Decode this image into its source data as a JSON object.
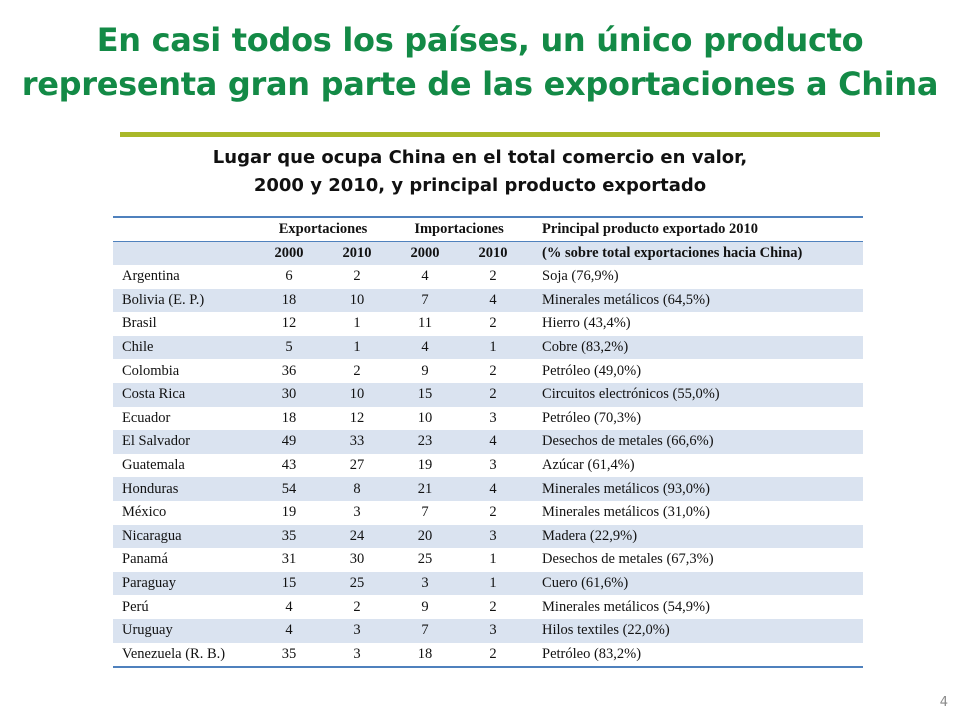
{
  "slide": {
    "title_line1": "En casi todos los países, un único producto",
    "title_line2": "representa gran parte de las exportaciones a China",
    "subtitle_line1": "Lugar que ocupa China en el total comercio en valor,",
    "subtitle_line2": "2000 y 2010, y principal producto exportado",
    "page_number": "4"
  },
  "table": {
    "group_headers": {
      "exports": "Exportaciones",
      "imports": "Importaciones",
      "product": "Principal producto exportado 2010"
    },
    "sub_headers": {
      "y1": "2000",
      "y2": "2010",
      "y3": "2000",
      "y4": "2010",
      "product": "(% sobre total exportaciones hacia China)"
    },
    "rows": [
      {
        "country": "Argentina",
        "exp2000": "6",
        "exp2010": "2",
        "imp2000": "4",
        "imp2010": "2",
        "product": "Soja (76,9%)"
      },
      {
        "country": "Bolivia (E. P.)",
        "exp2000": "18",
        "exp2010": "10",
        "imp2000": "7",
        "imp2010": "4",
        "product": "Minerales metálicos (64,5%)"
      },
      {
        "country": "Brasil",
        "exp2000": "12",
        "exp2010": "1",
        "imp2000": "11",
        "imp2010": "2",
        "product": "Hierro (43,4%)"
      },
      {
        "country": "Chile",
        "exp2000": "5",
        "exp2010": "1",
        "imp2000": "4",
        "imp2010": "1",
        "product": "Cobre (83,2%)"
      },
      {
        "country": "Colombia",
        "exp2000": "36",
        "exp2010": "2",
        "imp2000": "9",
        "imp2010": "2",
        "product": "Petróleo (49,0%)"
      },
      {
        "country": "Costa Rica",
        "exp2000": "30",
        "exp2010": "10",
        "imp2000": "15",
        "imp2010": "2",
        "product": "Circuitos electrónicos (55,0%)"
      },
      {
        "country": "Ecuador",
        "exp2000": "18",
        "exp2010": "12",
        "imp2000": "10",
        "imp2010": "3",
        "product": "Petróleo (70,3%)"
      },
      {
        "country": "El Salvador",
        "exp2000": "49",
        "exp2010": "33",
        "imp2000": "23",
        "imp2010": "4",
        "product": "Desechos de metales (66,6%)"
      },
      {
        "country": "Guatemala",
        "exp2000": "43",
        "exp2010": "27",
        "imp2000": "19",
        "imp2010": "3",
        "product": "Azúcar (61,4%)"
      },
      {
        "country": "Honduras",
        "exp2000": "54",
        "exp2010": "8",
        "imp2000": "21",
        "imp2010": "4",
        "product": "Minerales metálicos (93,0%)"
      },
      {
        "country": "México",
        "exp2000": "19",
        "exp2010": "3",
        "imp2000": "7",
        "imp2010": "2",
        "product": "Minerales metálicos (31,0%)"
      },
      {
        "country": "Nicaragua",
        "exp2000": "35",
        "exp2010": "24",
        "imp2000": "20",
        "imp2010": "3",
        "product": "Madera (22,9%)"
      },
      {
        "country": "Panamá",
        "exp2000": "31",
        "exp2010": "30",
        "imp2000": "25",
        "imp2010": "1",
        "product": "Desechos de metales (67,3%)"
      },
      {
        "country": "Paraguay",
        "exp2000": "15",
        "exp2010": "25",
        "imp2000": "3",
        "imp2010": "1",
        "product": "Cuero (61,6%)"
      },
      {
        "country": "Perú",
        "exp2000": "4",
        "exp2010": "2",
        "imp2000": "9",
        "imp2010": "2",
        "product": "Minerales metálicos (54,9%)"
      },
      {
        "country": "Uruguay",
        "exp2000": "4",
        "exp2010": "3",
        "imp2000": "7",
        "imp2010": "3",
        "product": "Hilos textiles (22,0%)"
      },
      {
        "country": "Venezuela (R. B.)",
        "exp2000": "35",
        "exp2010": "3",
        "imp2000": "18",
        "imp2010": "2",
        "product": "Petróleo (83,2%)"
      }
    ]
  }
}
